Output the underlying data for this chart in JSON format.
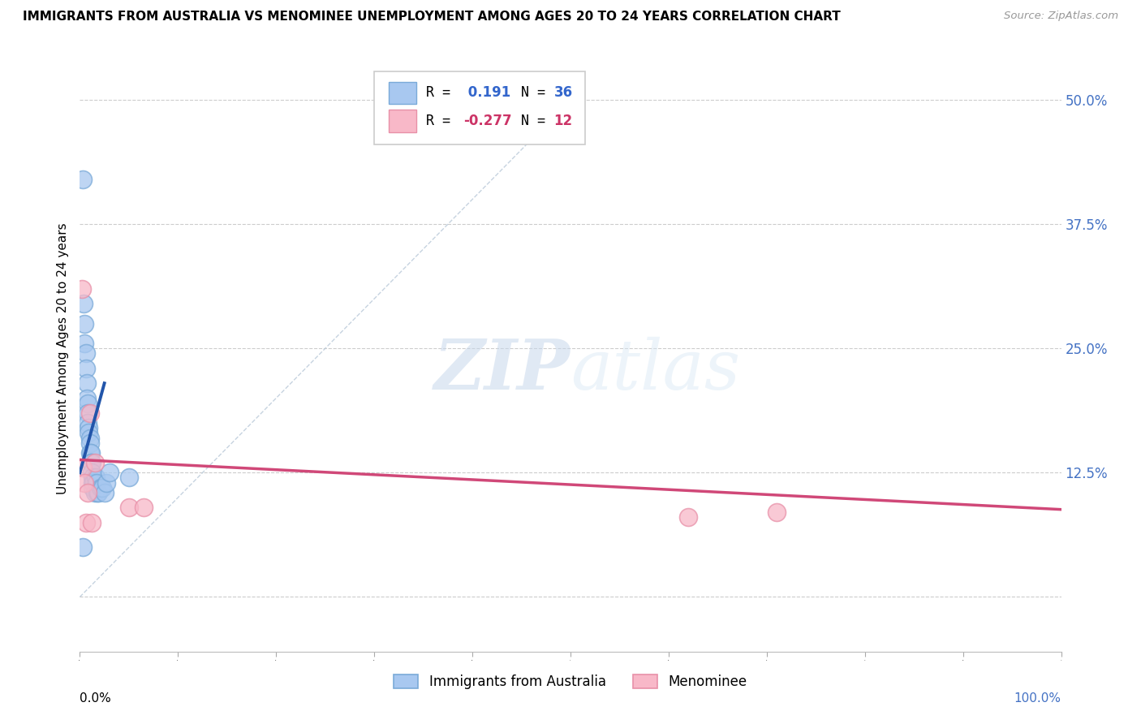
{
  "title": "IMMIGRANTS FROM AUSTRALIA VS MENOMINEE UNEMPLOYMENT AMONG AGES 20 TO 24 YEARS CORRELATION CHART",
  "source": "Source: ZipAtlas.com",
  "ylabel": "Unemployment Among Ages 20 to 24 years",
  "yticks": [
    0.0,
    0.125,
    0.25,
    0.375,
    0.5
  ],
  "ytick_labels": [
    "",
    "12.5%",
    "25.0%",
    "37.5%",
    "50.0%"
  ],
  "xlim": [
    0.0,
    1.0
  ],
  "ylim": [
    -0.055,
    0.535
  ],
  "legend1_R": "0.191",
  "legend1_N": "36",
  "legend2_R": "-0.277",
  "legend2_N": "12",
  "watermark_zip": "ZIP",
  "watermark_atlas": "atlas",
  "blue_color": "#a8c8f0",
  "blue_edge": "#7aaad8",
  "blue_dark": "#2255aa",
  "pink_color": "#f8b8c8",
  "pink_edge": "#e890a8",
  "pink_dark": "#d04878",
  "blue_scatter_x": [
    0.003,
    0.004,
    0.005,
    0.005,
    0.006,
    0.006,
    0.007,
    0.007,
    0.008,
    0.008,
    0.008,
    0.009,
    0.009,
    0.01,
    0.01,
    0.01,
    0.011,
    0.011,
    0.012,
    0.012,
    0.013,
    0.013,
    0.013,
    0.014,
    0.015,
    0.016,
    0.017,
    0.018,
    0.019,
    0.021,
    0.023,
    0.025,
    0.027,
    0.03,
    0.05,
    0.003
  ],
  "blue_scatter_y": [
    0.42,
    0.295,
    0.275,
    0.255,
    0.245,
    0.23,
    0.215,
    0.2,
    0.195,
    0.185,
    0.175,
    0.17,
    0.165,
    0.16,
    0.155,
    0.145,
    0.145,
    0.135,
    0.135,
    0.125,
    0.12,
    0.115,
    0.11,
    0.115,
    0.105,
    0.12,
    0.115,
    0.105,
    0.105,
    0.11,
    0.11,
    0.105,
    0.115,
    0.125,
    0.12,
    0.05
  ],
  "pink_scatter_x": [
    0.002,
    0.003,
    0.005,
    0.006,
    0.008,
    0.01,
    0.012,
    0.015,
    0.05,
    0.065,
    0.62,
    0.71
  ],
  "pink_scatter_y": [
    0.31,
    0.13,
    0.115,
    0.075,
    0.105,
    0.185,
    0.075,
    0.135,
    0.09,
    0.09,
    0.08,
    0.085
  ],
  "blue_trend_x": [
    0.0,
    0.025
  ],
  "blue_trend_y": [
    0.125,
    0.215
  ],
  "pink_trend_x": [
    0.0,
    1.0
  ],
  "pink_trend_y": [
    0.138,
    0.088
  ],
  "diag_line_x": [
    0.0,
    0.5
  ],
  "diag_line_y": [
    0.0,
    0.5
  ],
  "grid_color": "#cccccc",
  "spine_color": "#cccccc"
}
